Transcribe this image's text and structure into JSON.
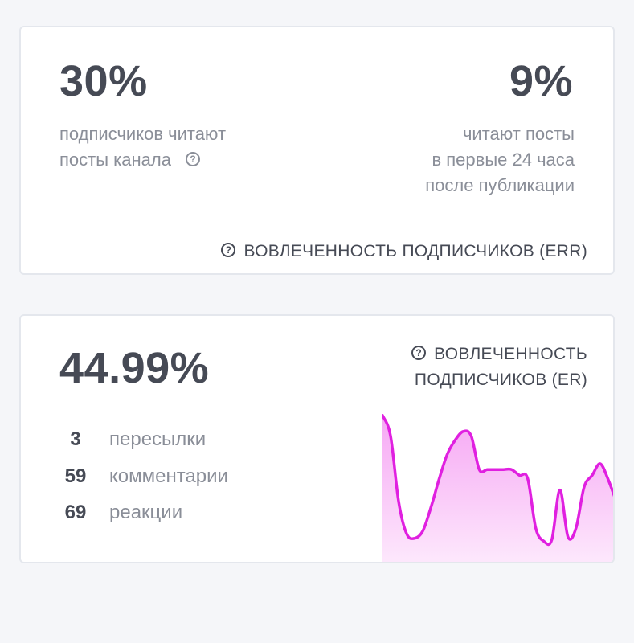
{
  "err_card": {
    "reach_percent": "30%",
    "reach_line1": "подписчиков читают",
    "reach_line2": "посты канала",
    "day_percent": "9%",
    "day_line1": "читают посты",
    "day_line2": "в первые 24 часа",
    "day_line3": "после публикации",
    "footer_label": "ВОВЛЕЧЕННОСТЬ ПОДПИСЧИКОВ (ERR)"
  },
  "er_card": {
    "er_percent": "44.99%",
    "title_line1": "ВОВЛЕЧЕННОСТЬ",
    "title_line2": "ПОДПИСЧИКОВ (ER)",
    "stats": [
      {
        "value": "3",
        "label": "пересылки"
      },
      {
        "value": "59",
        "label": "комментарии"
      },
      {
        "value": "69",
        "label": "реакции"
      }
    ],
    "sparkline": {
      "color": "#e020e0",
      "fill_top": "#f6a8f4",
      "fill_bottom": "#fde8fc",
      "values": [
        0.99,
        0.85,
        0.4,
        0.18,
        0.15,
        0.2,
        0.36,
        0.55,
        0.72,
        0.82,
        0.88,
        0.85,
        0.62,
        0.62,
        0.62,
        0.62,
        0.62,
        0.58,
        0.56,
        0.22,
        0.13,
        0.14,
        0.48,
        0.16,
        0.22,
        0.5,
        0.58,
        0.66,
        0.55,
        0.4
      ]
    }
  },
  "icons": {
    "question": "?"
  }
}
